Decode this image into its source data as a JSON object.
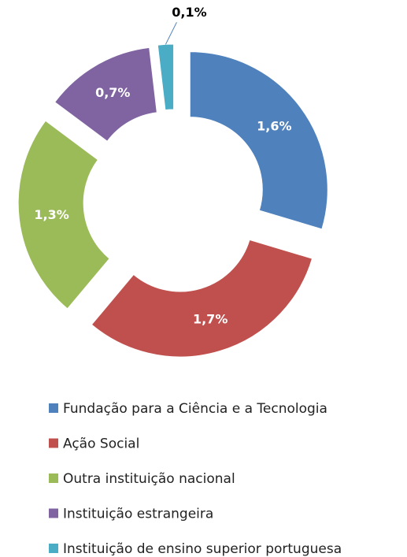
{
  "chart_data": {
    "type": "pie",
    "categories": [
      "Fundação para a Ciência e a Tecnologia",
      "Ação Social",
      "Outra instituição nacional",
      "Instituição estrangeira",
      "Instituição de ensino superior portuguesa"
    ],
    "values": [
      1.6,
      1.7,
      1.3,
      0.7,
      0.1
    ],
    "value_labels": [
      "1,6%",
      "1,7%",
      "1,3%",
      "0,7%",
      "0,1%"
    ],
    "colors": [
      "#4f81bd",
      "#c0504d",
      "#9bbb59",
      "#8064a2",
      "#4bacc6"
    ],
    "donut": true
  }
}
